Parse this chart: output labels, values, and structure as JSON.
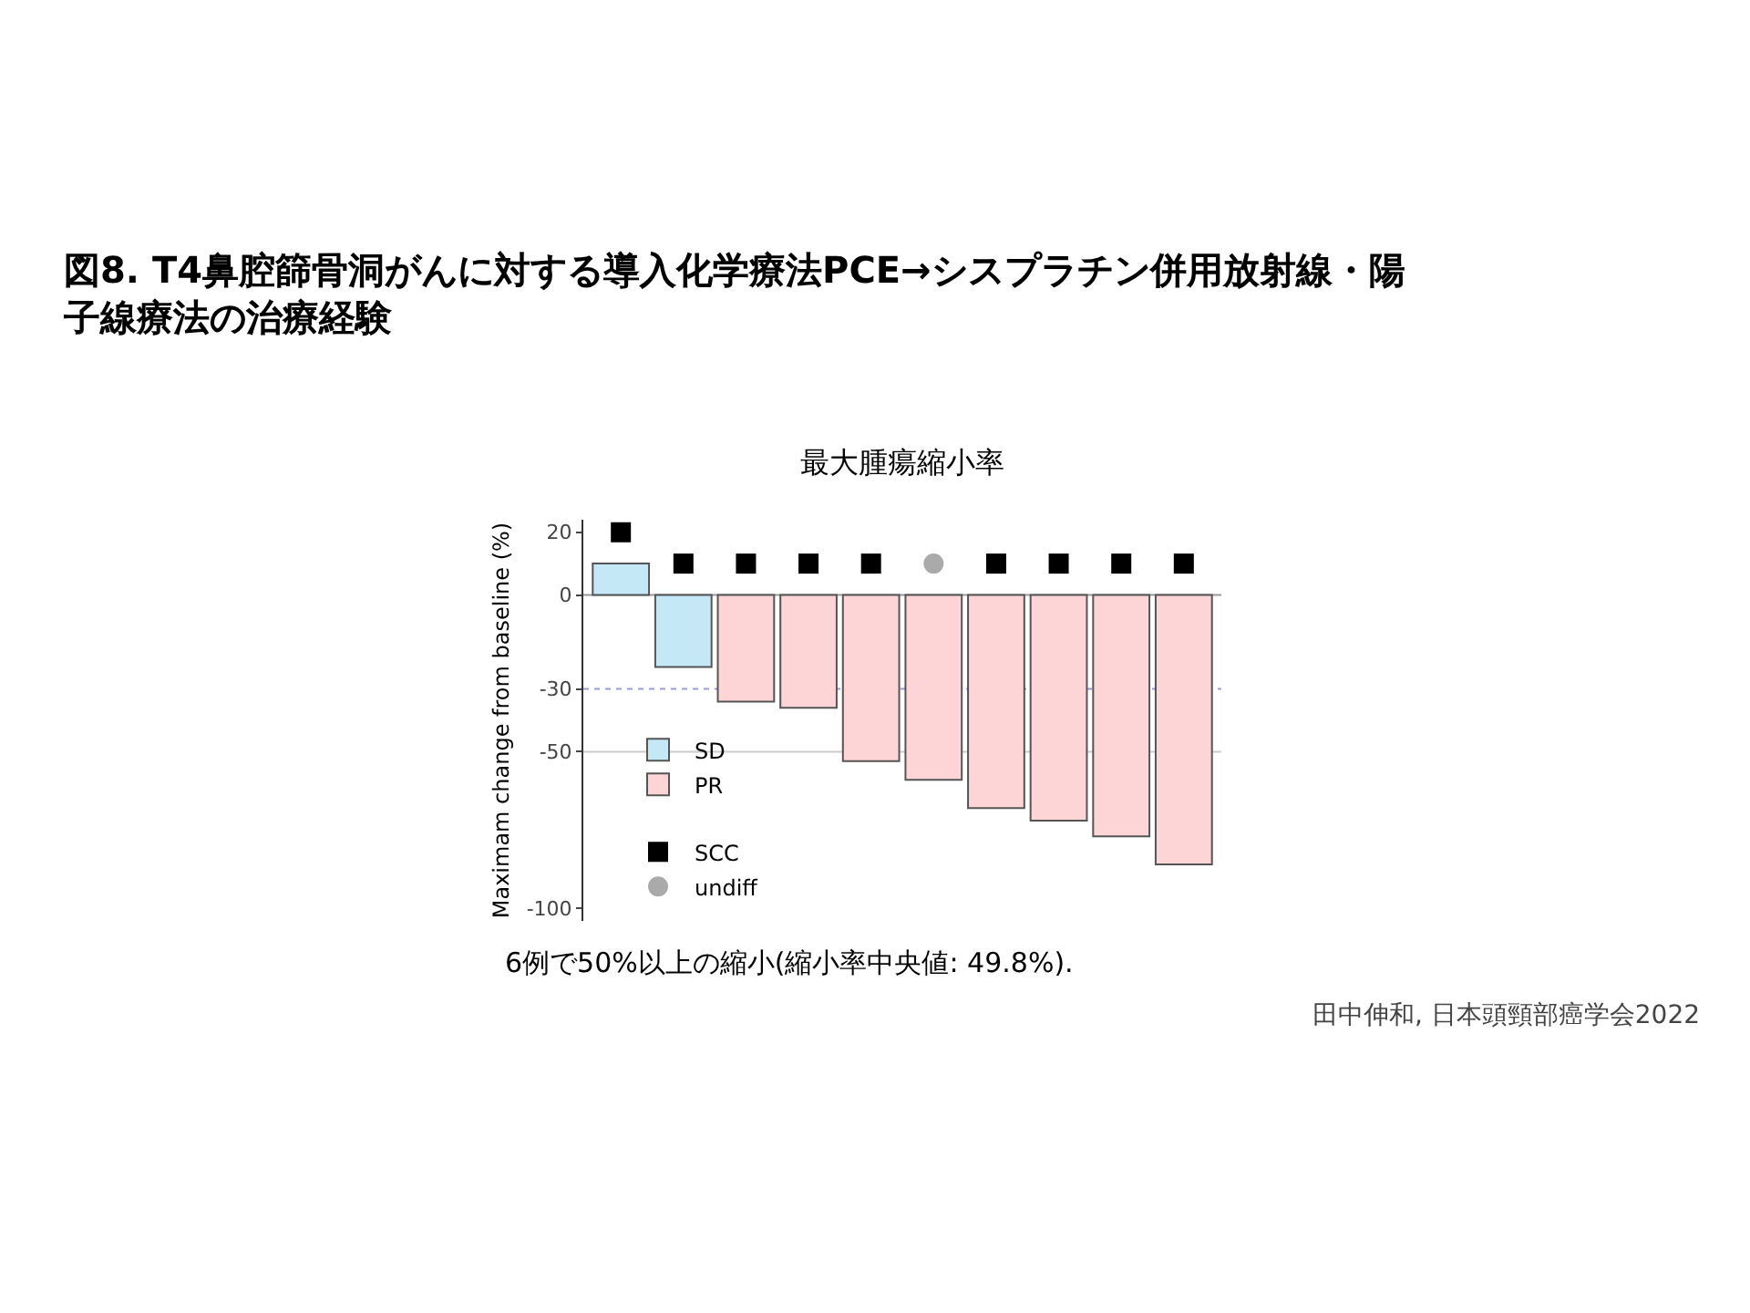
{
  "chart_data": {
    "type": "bar",
    "title": "図8. T4鼻腔篩骨洞がんに対する導入化学療法PCE→シスプラチン併用放射線・陽子線療法の治療経験",
    "subtitle": "最大腫瘍縮小率",
    "ylabel": "Maximam change from baseline (%)",
    "categories": [
      null,
      null,
      null,
      null,
      null,
      null,
      null,
      null,
      null,
      null
    ],
    "series": [
      {
        "name": "SD",
        "color": "#c5e8f7",
        "values": [
          10,
          -23,
          null,
          null,
          null,
          null,
          null,
          null,
          null,
          null
        ]
      },
      {
        "name": "PR",
        "color": "#fdd5d7",
        "values": [
          null,
          null,
          -34,
          -36,
          -53,
          -59,
          -68,
          -72,
          -77,
          -86
        ]
      },
      {
        "name": "SCC",
        "type": "scatter",
        "marker": "square",
        "color": "#000000",
        "values": [
          20,
          10,
          10,
          10,
          10,
          null,
          10,
          10,
          10,
          10
        ]
      },
      {
        "name": "undiff",
        "type": "scatter",
        "marker": "circle",
        "color": "#aaaaaa",
        "values": [
          null,
          null,
          null,
          null,
          null,
          10,
          null,
          null,
          null,
          null
        ]
      }
    ],
    "ylim": [
      -104,
      24
    ],
    "yticks": [
      20,
      0,
      -30,
      -50,
      -100
    ],
    "ref_lines": [
      {
        "axis": "y",
        "value": -30,
        "label": null,
        "color": "#9999dd",
        "line_style": "dotted"
      },
      {
        "axis": "y",
        "value": -50,
        "label": null,
        "color": "#cccccc",
        "line_style": "solid"
      },
      {
        "axis": "y",
        "value": 0,
        "label": null,
        "color": "#999999",
        "line_style": "solid"
      }
    ],
    "grid": false,
    "legend": "bottom left",
    "annotations": [
      "6例で50%以上の縮小(縮小率中央値: 49.8%).",
      "田中伸和, 日本頭頸部癌学会2022"
    ]
  }
}
